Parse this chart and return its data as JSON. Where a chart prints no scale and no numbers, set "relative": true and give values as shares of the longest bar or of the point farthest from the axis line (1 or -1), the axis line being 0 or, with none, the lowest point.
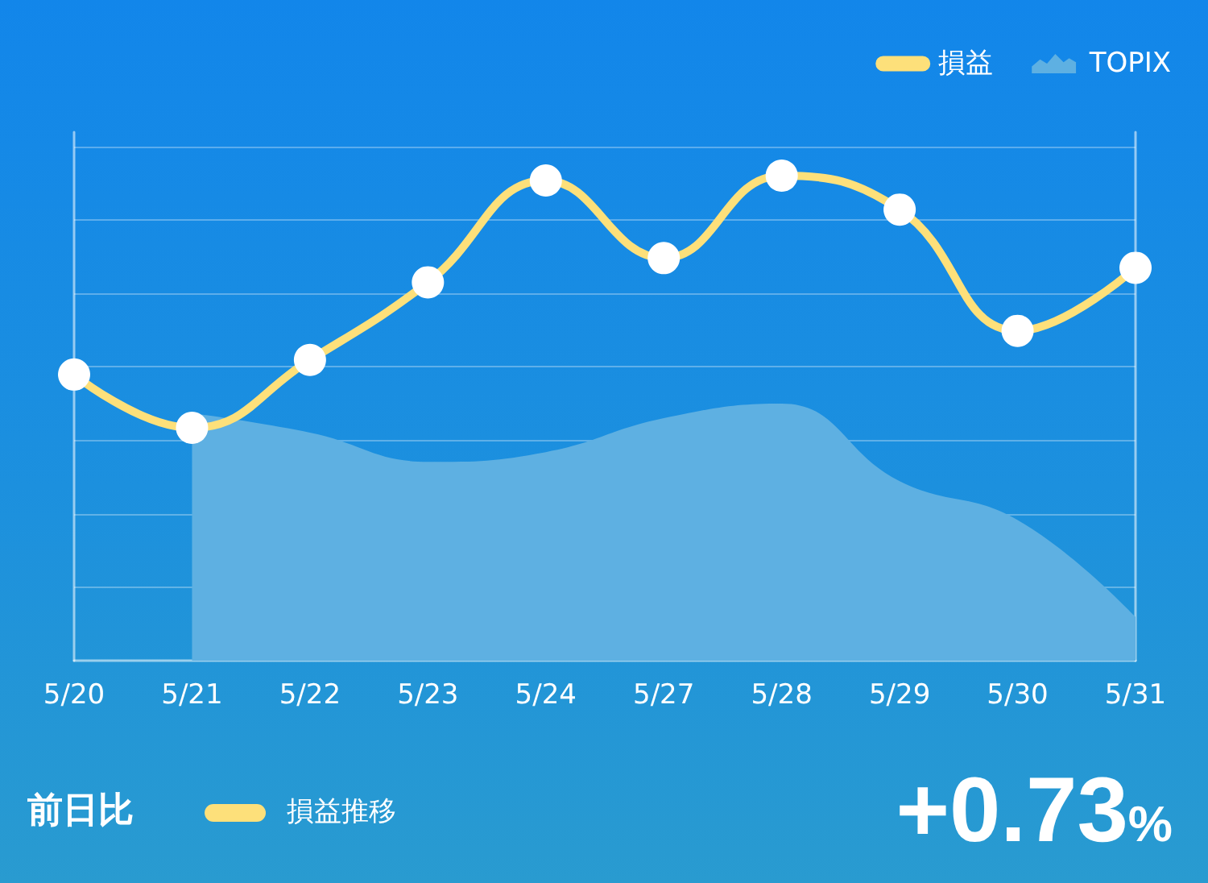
{
  "chart_data": {
    "type": "line",
    "categories": [
      "5/20",
      "5/21",
      "5/22",
      "5/23",
      "5/24",
      "5/27",
      "5/28",
      "5/29",
      "5/30",
      "5/31"
    ],
    "series": [
      {
        "name": "損益",
        "color": "#fde07a",
        "marker": "circle",
        "values": [
          0.59,
          0.48,
          0.62,
          0.78,
          0.99,
          0.83,
          1,
          0.93,
          0.68,
          0.81
        ]
      },
      {
        "name": "TOPIX",
        "type": "area",
        "color": "#5eb0e2",
        "values": [
          null,
          0.51,
          0.47,
          0.41,
          0.43,
          0.5,
          0.53,
          0.37,
          0.29,
          0.09
        ]
      }
    ],
    "relative": true,
    "grid": "y",
    "legend": "top right",
    "annotations": [
      "前日比",
      "損益推移",
      "+0.73%"
    ]
  }
}
